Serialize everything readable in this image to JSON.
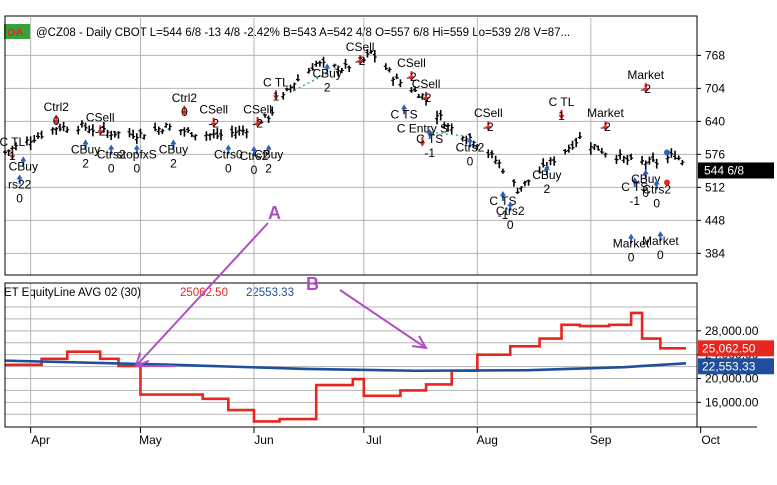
{
  "colors": {
    "bar": "#000000",
    "grid": "#b4b4b4",
    "equity_line": "#e8261e",
    "avg_line": "#1f4f9c",
    "annotation": "#b04dc4",
    "label_green_bg": "#3aa23a",
    "label_green_fg": "#e8261e",
    "buy_arrow": "#2a62b8",
    "sell_arrow": "#e8261e",
    "last_price_bg": "#000000",
    "last_price_fg": "#ffffff",
    "trend_dot": "#2aa7a7"
  },
  "header": {
    "badge": "OA",
    "text": "@CZ08 - Daily  CBOT  L=544 6/8   -13 4/8  -2.42%   B=543  A=542 4/8  O=557 6/8  Hi=559  Lo=539 2/8  V=87..."
  },
  "lower_header": {
    "title": "ET EquityLine AVG 02 (30)",
    "equity_value": "25062.50",
    "avg_value": "22553.33"
  },
  "annotations": {
    "a": "A",
    "b": "B"
  },
  "chart_data": [
    {
      "type": "bar",
      "title": "@CZ08 - Daily",
      "x_dates": [
        "2008-03-25",
        "2008-09-30"
      ],
      "ylim": [
        342,
        792
      ],
      "y_ticks": [
        384,
        448,
        512,
        576,
        640,
        704,
        768
      ],
      "x_ticks": [
        {
          "date": "2008-04-01",
          "label": "Apr"
        },
        {
          "date": "2008-05-01",
          "label": "May"
        },
        {
          "date": "2008-06-01",
          "label": "Jun"
        },
        {
          "date": "2008-07-01",
          "label": "Jul"
        },
        {
          "date": "2008-08-01",
          "label": "Aug"
        },
        {
          "date": "2008-09-01",
          "label": "Sep"
        },
        {
          "date": "2008-10-01",
          "label": "Oct"
        }
      ],
      "grid": true,
      "last_price_label": "544 6/8",
      "last_price": 544.75,
      "price_path": [
        [
          "2008-03-25",
          580
        ],
        [
          "2008-04-01",
          605
        ],
        [
          "2008-04-08",
          628
        ],
        [
          "2008-04-15",
          630
        ],
        [
          "2008-04-22",
          618
        ],
        [
          "2008-05-01",
          615
        ],
        [
          "2008-05-08",
          630
        ],
        [
          "2008-05-15",
          618
        ],
        [
          "2008-05-22",
          612
        ],
        [
          "2008-05-29",
          622
        ],
        [
          "2008-06-05",
          650
        ],
        [
          "2008-06-12",
          715
        ],
        [
          "2008-06-18",
          752
        ],
        [
          "2008-06-25",
          742
        ],
        [
          "2008-07-01",
          758
        ],
        [
          "2008-07-03",
          774
        ],
        [
          "2008-07-10",
          720
        ],
        [
          "2008-07-17",
          690
        ],
        [
          "2008-07-24",
          630
        ],
        [
          "2008-07-31",
          605
        ],
        [
          "2008-08-07",
          558
        ],
        [
          "2008-08-12",
          508
        ],
        [
          "2008-08-19",
          548
        ],
        [
          "2008-08-26",
          590
        ],
        [
          "2008-08-29",
          608
        ],
        [
          "2008-09-05",
          580
        ],
        [
          "2008-09-12",
          562
        ],
        [
          "2008-09-19",
          560
        ],
        [
          "2008-09-24",
          575
        ],
        [
          "2008-09-29",
          545
        ]
      ],
      "signals": [
        {
          "date": "2008-03-27",
          "price": 592,
          "label": "C TL",
          "dir": "sell",
          "qty": "1"
        },
        {
          "date": "2008-03-30",
          "price": 545,
          "label": "CBuy",
          "dir": "buy",
          "qty": ""
        },
        {
          "date": "2008-03-29",
          "price": 510,
          "label": "rs22",
          "dir": "buy",
          "qty": "0"
        },
        {
          "date": "2008-04-08",
          "price": 660,
          "label": "Ctrl2",
          "dir": "sell",
          "qty": "0"
        },
        {
          "date": "2008-04-20",
          "price": 640,
          "label": "CSell",
          "dir": "sell",
          "qty": "-2"
        },
        {
          "date": "2008-04-16",
          "price": 578,
          "label": "CBuy",
          "dir": "buy",
          "qty": "2"
        },
        {
          "date": "2008-04-23",
          "price": 568,
          "label": "Ctrs2",
          "dir": "buy",
          "qty": "0"
        },
        {
          "date": "2008-04-30",
          "price": 568,
          "label": "stopfxS",
          "dir": "buy",
          "qty": "0"
        },
        {
          "date": "2008-05-10",
          "price": 578,
          "label": "CBuy",
          "dir": "buy",
          "qty": "2"
        },
        {
          "date": "2008-05-13",
          "price": 678,
          "label": "Ctrl2",
          "dir": "sell",
          "qty": "0"
        },
        {
          "date": "2008-05-21",
          "price": 655,
          "label": "CSell",
          "dir": "sell",
          "qty": "-2"
        },
        {
          "date": "2008-05-25",
          "price": 568,
          "label": "Ctrs0",
          "dir": "buy",
          "qty": "0"
        },
        {
          "date": "2008-06-01",
          "price": 565,
          "label": "Ctrs2",
          "dir": "buy",
          "qty": "0"
        },
        {
          "date": "2008-06-02",
          "price": 655,
          "label": "CSell",
          "dir": "sell",
          "qty": "-2"
        },
        {
          "date": "2008-06-05",
          "price": 568,
          "label": "CBuy",
          "dir": "buy",
          "qty": "2"
        },
        {
          "date": "2008-06-07",
          "price": 708,
          "label": "C TL",
          "dir": "sell",
          "qty": "1"
        },
        {
          "date": "2008-06-21",
          "price": 725,
          "label": "CBuy",
          "dir": "buy",
          "qty": "2"
        },
        {
          "date": "2008-06-30",
          "price": 776,
          "label": "CSell",
          "dir": "sell",
          "qty": "-2"
        },
        {
          "date": "2008-07-14",
          "price": 745,
          "label": "CSell",
          "dir": "sell",
          "qty": "-2"
        },
        {
          "date": "2008-07-18",
          "price": 705,
          "label": "CSell",
          "dir": "sell",
          "qty": "-2"
        },
        {
          "date": "2008-07-12",
          "price": 646,
          "label": "C TS",
          "dir": "buy",
          "qty": ""
        },
        {
          "date": "2008-07-17",
          "price": 618,
          "label": "C Entry S",
          "dir": "sell",
          "qty": ""
        },
        {
          "date": "2008-07-19",
          "price": 598,
          "label": "C TS",
          "dir": "buy",
          "qty": "-1"
        },
        {
          "date": "2008-07-30",
          "price": 582,
          "label": "Ctrs2",
          "dir": "buy",
          "qty": "0"
        },
        {
          "date": "2008-08-04",
          "price": 648,
          "label": "CSell",
          "dir": "sell",
          "qty": "-2"
        },
        {
          "date": "2008-08-08",
          "price": 478,
          "label": "C TS",
          "dir": "buy",
          "qty": "-1"
        },
        {
          "date": "2008-08-10",
          "price": 458,
          "label": "Ctrs2",
          "dir": "buy",
          "qty": "0"
        },
        {
          "date": "2008-08-20",
          "price": 528,
          "label": "CBuy",
          "dir": "buy",
          "qty": "2"
        },
        {
          "date": "2008-08-24",
          "price": 670,
          "label": "C TL",
          "dir": "sell",
          "qty": "1"
        },
        {
          "date": "2008-09-05",
          "price": 648,
          "label": "Market",
          "dir": "sell",
          "qty": "-2"
        },
        {
          "date": "2008-09-13",
          "price": 505,
          "label": "C TS",
          "dir": "buy",
          "qty": "-1"
        },
        {
          "date": "2008-09-16",
          "price": 520,
          "label": "CBuy",
          "dir": "buy",
          "qty": "0"
        },
        {
          "date": "2008-09-19",
          "price": 500,
          "label": "Ctrs2",
          "dir": "buy",
          "qty": "0"
        },
        {
          "date": "2008-09-16",
          "price": 722,
          "label": "Market",
          "dir": "sell",
          "qty": "-2"
        },
        {
          "date": "2008-09-12",
          "price": 395,
          "label": "Market",
          "dir": "buy",
          "qty": "0"
        },
        {
          "date": "2008-09-20",
          "price": 400,
          "label": "Market",
          "dir": "buy",
          "qty": "0"
        }
      ]
    },
    {
      "type": "line",
      "title": "ET EquityLine AVG 02 (30)",
      "ylim": [
        12200,
        32500
      ],
      "y_ticks": [
        16000,
        20000,
        24000,
        28000
      ],
      "y_tick_labels": [
        "16,000.00",
        "20,000.00",
        "24,000.00",
        "28,000.00"
      ],
      "grid": true,
      "series": [
        {
          "name": "EquityLine",
          "value_label": "25,062.50",
          "last": 25062.5,
          "steps": [
            [
              "2008-03-25",
              22300
            ],
            [
              "2008-04-04",
              23300
            ],
            [
              "2008-04-11",
              24500
            ],
            [
              "2008-04-20",
              23300
            ],
            [
              "2008-04-25",
              22100
            ],
            [
              "2008-05-01",
              17300
            ],
            [
              "2008-05-18",
              16600
            ],
            [
              "2008-05-25",
              14700
            ],
            [
              "2008-06-01",
              12800
            ],
            [
              "2008-06-08",
              13200
            ],
            [
              "2008-06-18",
              18900
            ],
            [
              "2008-06-28",
              19900
            ],
            [
              "2008-07-01",
              17100
            ],
            [
              "2008-07-11",
              18000
            ],
            [
              "2008-07-18",
              19000
            ],
            [
              "2008-07-25",
              21300
            ],
            [
              "2008-08-01",
              24000
            ],
            [
              "2008-08-10",
              25400
            ],
            [
              "2008-08-18",
              26700
            ],
            [
              "2008-08-24",
              29000
            ],
            [
              "2008-08-29",
              28800
            ],
            [
              "2008-09-06",
              29000
            ],
            [
              "2008-09-12",
              31000
            ],
            [
              "2008-09-15",
              26700
            ],
            [
              "2008-09-20",
              25062.5
            ]
          ],
          "end": "2008-09-27"
        },
        {
          "name": "AVG",
          "value_label": "22,553.33",
          "last": 22553.33,
          "points": [
            [
              "2008-03-25",
              23000
            ],
            [
              "2008-05-10",
              22300
            ],
            [
              "2008-06-15",
              21600
            ],
            [
              "2008-07-15",
              21300
            ],
            [
              "2008-08-15",
              21400
            ],
            [
              "2008-09-10",
              21900
            ],
            [
              "2008-09-27",
              22553.33
            ]
          ]
        }
      ]
    }
  ]
}
